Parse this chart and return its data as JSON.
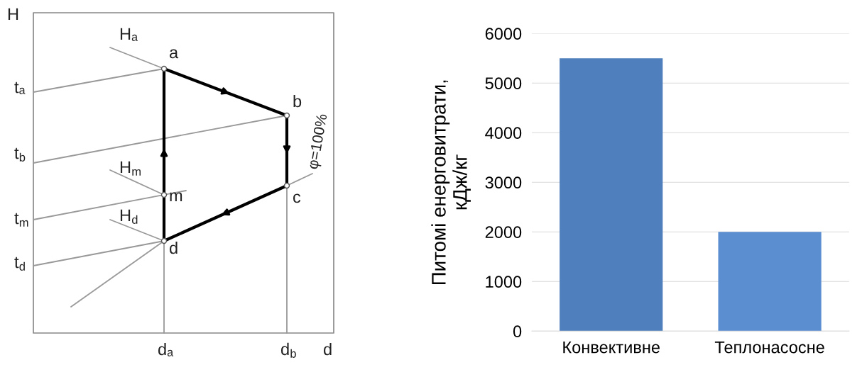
{
  "chart_data": [
    {
      "type": "other",
      "annotations": [
        "H",
        "Hₐ",
        "a",
        "tₐ",
        "b",
        "t$_{b}$",
        "φ=100%",
        "H$_{m}$",
        "m",
        "c",
        "t$_{m}$",
        "H$_{d}$",
        "d",
        "t$_{d}$",
        "dₐ",
        "d$_{b}$",
        "d"
      ]
    },
    {
      "type": "bar",
      "categories": [
        "Конвективне",
        "Теплонасосне"
      ],
      "values": [
        5500,
        2000
      ],
      "colors": [
        "#4f7fbd",
        "#5b8ed0"
      ],
      "ylabel": "Питомі енерговитрати,\nкДж/кг",
      "ylim": [
        0,
        6000
      ],
      "yticks": [
        0,
        1000,
        2000,
        3000,
        4000,
        5000,
        6000
      ],
      "grid": "y"
    }
  ]
}
